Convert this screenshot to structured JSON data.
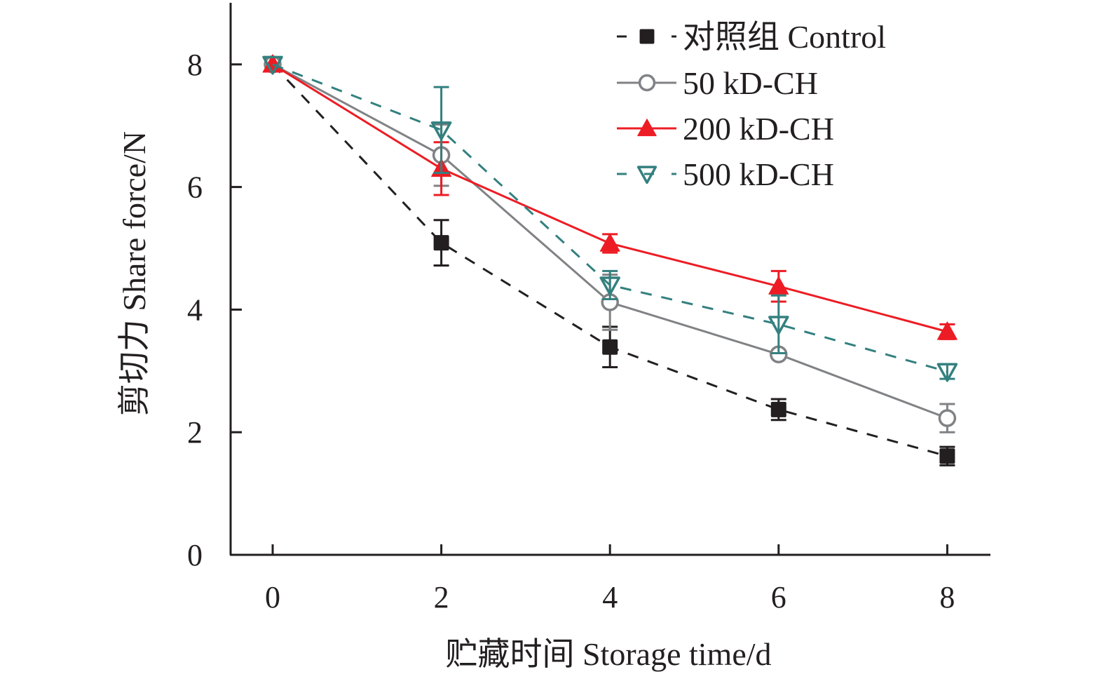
{
  "chart_data": {
    "type": "line",
    "title": "",
    "xlabel": "贮藏时间 Storage time/d",
    "ylabel": "剪切力 Share force/N",
    "xlim": [
      -0.5,
      8.5
    ],
    "ylim": [
      0,
      9
    ],
    "x_ticks": [
      0,
      2,
      4,
      6,
      8
    ],
    "x_tick_labels": [
      "0",
      "2",
      "4",
      "6",
      "8"
    ],
    "y_ticks": [
      0,
      2,
      4,
      6,
      8
    ],
    "y_tick_labels": [
      "0",
      "2",
      "4",
      "6",
      "8"
    ],
    "grid": false,
    "legend_position": "top-right",
    "x": [
      0,
      2,
      4,
      6,
      8
    ],
    "series": [
      {
        "name": "对照组 Control",
        "color": "#231f20",
        "line_style": "dashed",
        "marker": "filled-square",
        "values": [
          8.0,
          5.09,
          3.39,
          2.37,
          1.61
        ],
        "errors": [
          0.05,
          0.37,
          0.33,
          0.17,
          0.15
        ]
      },
      {
        "name": "50 kD-CH",
        "color": "#808285",
        "line_style": "solid",
        "marker": "open-circle",
        "values": [
          8.0,
          6.52,
          4.12,
          3.27,
          2.23
        ],
        "errors": [
          0.05,
          0.5,
          0.45,
          0.05,
          0.23
        ]
      },
      {
        "name": "200 kD-CH",
        "color": "#ed1c24",
        "line_style": "solid",
        "marker": "filled-triangle-up",
        "values": [
          8.0,
          6.3,
          5.08,
          4.38,
          3.64
        ],
        "errors": [
          0.05,
          0.43,
          0.15,
          0.25,
          0.12
        ]
      },
      {
        "name": "500 kD-CH",
        "color": "#33807f",
        "line_style": "dashed",
        "marker": "open-triangle-down",
        "values": [
          8.0,
          6.93,
          4.4,
          3.76,
          2.99
        ],
        "errors": [
          0.05,
          0.7,
          0.23,
          0.47,
          0.12
        ]
      }
    ]
  }
}
